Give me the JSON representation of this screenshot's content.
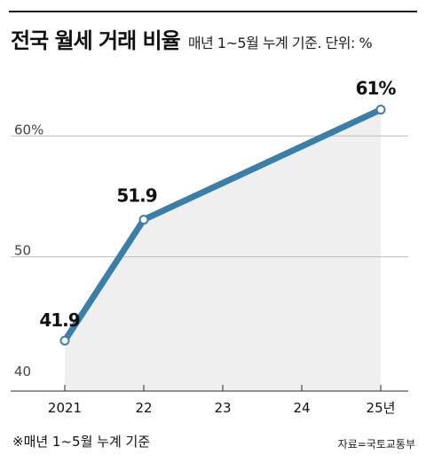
{
  "header": {
    "title": "전국 월세 거래 비율",
    "subtitle": "매년 1~5월 누계 기준. 단위: %"
  },
  "footnote": "※매년 1~5월 누계 기준",
  "source": "자료=국토교통부",
  "colors": {
    "line": "#3a7fa8",
    "area": "#efefef",
    "grid": "#bbbbbb",
    "marker_fill": "#ffffff"
  },
  "chart_data": {
    "type": "area",
    "categories": [
      "2021",
      "22",
      "23",
      "24",
      "25년"
    ],
    "x": [
      2021,
      2022,
      2023,
      2024,
      2025
    ],
    "values": [
      41.9,
      51.9,
      null,
      null,
      61
    ],
    "markers": [
      {
        "x": 2021,
        "y": 41.9,
        "label": "41.9"
      },
      {
        "x": 2022,
        "y": 51.9,
        "label": "51.9"
      },
      {
        "x": 2025,
        "y": 61,
        "label": "61%"
      }
    ],
    "ylim": [
      40,
      62
    ],
    "yticks": [
      {
        "value": 60,
        "label": "60%"
      },
      {
        "value": 50,
        "label": "50"
      },
      {
        "value": 40,
        "label": "40"
      }
    ],
    "grid": true,
    "xlabel": "",
    "ylabel": ""
  }
}
